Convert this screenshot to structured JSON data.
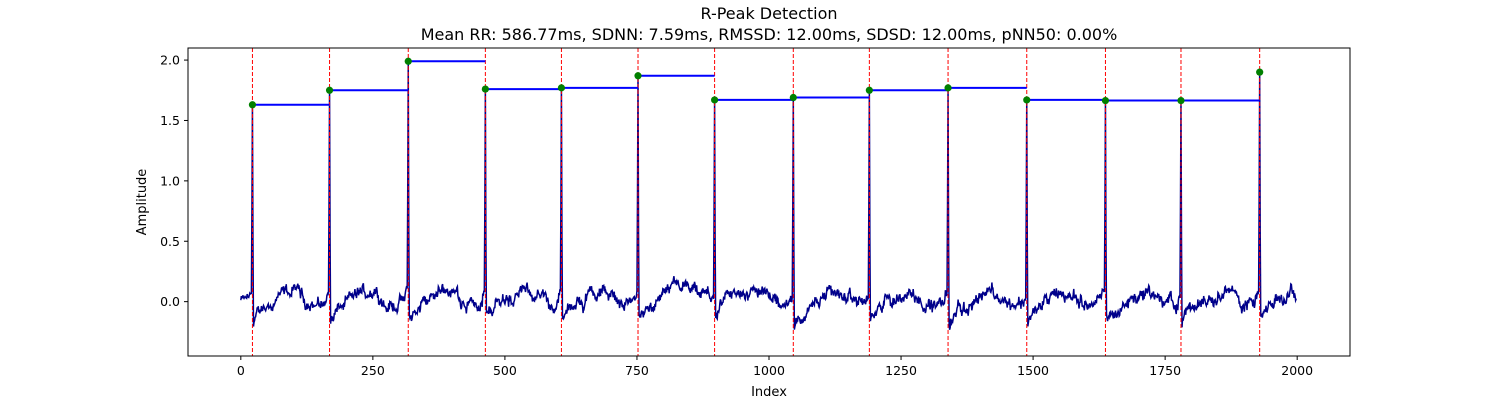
{
  "chart_data": {
    "type": "line",
    "title": "R-Peak Detection",
    "subtitle": "Mean RR: 586.77ms, SDNN: 7.59ms, RMSSD: 12.00ms, SDSD: 12.00ms, pNN50: 0.00%",
    "xlabel": "Index",
    "ylabel": "Amplitude",
    "xlim": [
      -100,
      2100
    ],
    "ylim": [
      -0.45,
      2.1
    ],
    "x_ticks": [
      0,
      250,
      500,
      750,
      1000,
      1250,
      1500,
      1750,
      2000
    ],
    "y_ticks": [
      0.0,
      0.5,
      1.0,
      1.5,
      2.0
    ],
    "x_tick_labels": [
      "0",
      "250",
      "500",
      "750",
      "1000",
      "1250",
      "1500",
      "1750",
      "2000"
    ],
    "y_tick_labels": [
      "0.0",
      "0.5",
      "1.0",
      "1.5",
      "2.0"
    ],
    "grid": false,
    "signal_length": 2000,
    "colors": {
      "signal": "#00008b",
      "peak_marker": "#008000",
      "peak_line": "#ff0000",
      "rr_interval": "#0000ff"
    },
    "r_peaks": {
      "x": [
        22,
        168,
        317,
        463,
        607,
        752,
        897,
        1046,
        1190,
        1339,
        1488,
        1637,
        1780,
        1929
      ],
      "y": [
        1.63,
        1.75,
        1.99,
        1.76,
        1.77,
        1.87,
        1.67,
        1.69,
        1.75,
        1.77,
        1.67,
        1.665,
        1.665,
        1.9
      ]
    },
    "rr_intervals": [
      {
        "x_start": 22,
        "x_end": 168,
        "y": 1.63
      },
      {
        "x_start": 168,
        "x_end": 317,
        "y": 1.75
      },
      {
        "x_start": 317,
        "x_end": 463,
        "y": 1.99
      },
      {
        "x_start": 463,
        "x_end": 607,
        "y": 1.76
      },
      {
        "x_start": 607,
        "x_end": 752,
        "y": 1.77
      },
      {
        "x_start": 752,
        "x_end": 897,
        "y": 1.87
      },
      {
        "x_start": 897,
        "x_end": 1046,
        "y": 1.67
      },
      {
        "x_start": 1046,
        "x_end": 1190,
        "y": 1.69
      },
      {
        "x_start": 1190,
        "x_end": 1339,
        "y": 1.75
      },
      {
        "x_start": 1339,
        "x_end": 1488,
        "y": 1.77
      },
      {
        "x_start": 1488,
        "x_end": 1637,
        "y": 1.67
      },
      {
        "x_start": 1637,
        "x_end": 1780,
        "y": 1.665
      },
      {
        "x_start": 1780,
        "x_end": 1929,
        "y": 1.665
      }
    ]
  }
}
